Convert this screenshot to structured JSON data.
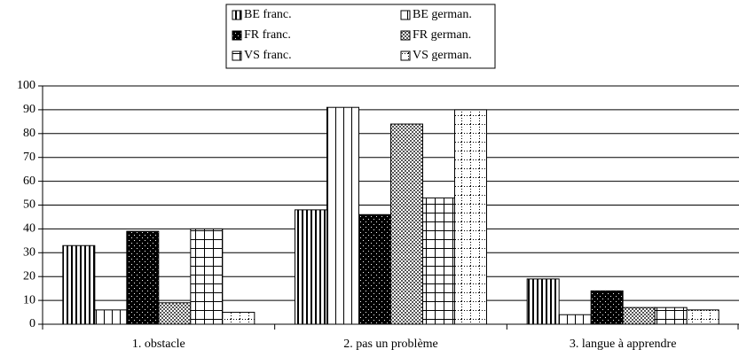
{
  "chart_data": {
    "type": "bar",
    "categories": [
      "1. obstacle",
      "2. pas un problème",
      "3. langue à apprendre"
    ],
    "series": [
      {
        "name": "BE franc.",
        "values": [
          33,
          48,
          19
        ]
      },
      {
        "name": "BE german.",
        "values": [
          6,
          91,
          4
        ]
      },
      {
        "name": "FR franc.",
        "values": [
          39,
          46,
          14
        ]
      },
      {
        "name": "FR german.",
        "values": [
          9,
          84,
          7
        ]
      },
      {
        "name": "VS franc.",
        "values": [
          40,
          53,
          7
        ]
      },
      {
        "name": "VS german.",
        "values": [
          5,
          90,
          6
        ]
      }
    ],
    "ylim": [
      0,
      100
    ],
    "yticks": [
      0,
      10,
      20,
      30,
      40,
      50,
      60,
      70,
      80,
      90,
      100
    ],
    "grid": true
  }
}
